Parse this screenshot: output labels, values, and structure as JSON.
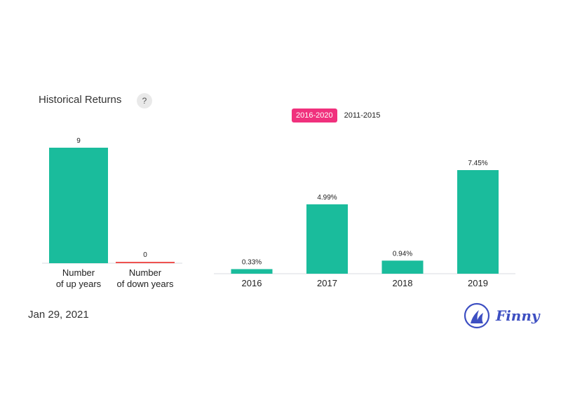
{
  "header": {
    "title": "Historical Returns",
    "help_label": "?"
  },
  "range_tabs": [
    {
      "label": "2016-2020",
      "active": true
    },
    {
      "label": "2011-2015",
      "active": false
    }
  ],
  "footer": {
    "date": "Jan 29, 2021",
    "brand": "Finny"
  },
  "colors": {
    "up": "#1abc9c",
    "down": "#ef5350",
    "accent": "#f0317d",
    "brand": "#3d4fc2"
  },
  "chart_data": [
    {
      "type": "bar",
      "categories": [
        [
          "Number",
          "of up years"
        ],
        [
          "Number",
          "of down years"
        ]
      ],
      "values": [
        9,
        0
      ],
      "data_labels": [
        "9",
        "0"
      ],
      "colors": [
        "#1abc9c",
        "#ef5350"
      ]
    },
    {
      "type": "bar",
      "categories": [
        "2016",
        "2017",
        "2018",
        "2019"
      ],
      "values": [
        0.33,
        4.99,
        0.94,
        7.45
      ],
      "data_labels": [
        "0.33%",
        "4.99%",
        "0.94%",
        "7.45%"
      ],
      "unit": "%",
      "colors": [
        "#1abc9c",
        "#1abc9c",
        "#1abc9c",
        "#1abc9c"
      ]
    }
  ]
}
